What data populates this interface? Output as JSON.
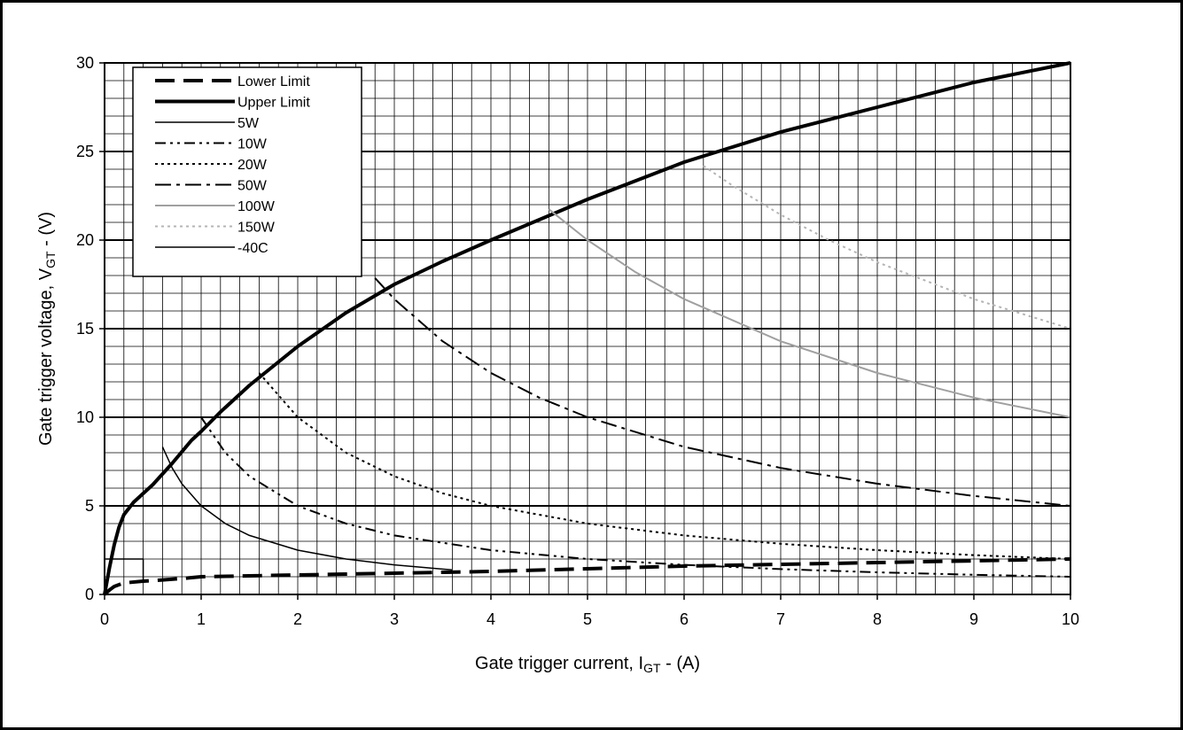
{
  "chart_data": {
    "type": "line",
    "xlabel": {
      "main": "Gate trigger current,  I",
      "sub": "GT",
      "suffix": " - (A)"
    },
    "ylabel": {
      "main": "Gate trigger voltage, V",
      "sub": "GT",
      "suffix": " - (V)"
    },
    "xlim": [
      0,
      10
    ],
    "ylim": [
      0,
      30
    ],
    "xticks": [
      "0",
      "1",
      "2",
      "3",
      "4",
      "5",
      "6",
      "7",
      "8",
      "9",
      "10"
    ],
    "yticks": [
      "0",
      "5",
      "10",
      "15",
      "20",
      "25",
      "30"
    ],
    "grid": true,
    "legend_position": "top-left",
    "series": [
      {
        "name": "Lower Limit",
        "style": "long-dash",
        "color": "#000000",
        "weight": "heavy",
        "points": [
          [
            0,
            0
          ],
          [
            0.05,
            0.25
          ],
          [
            0.1,
            0.45
          ],
          [
            0.2,
            0.65
          ],
          [
            0.4,
            0.75
          ],
          [
            0.6,
            0.82
          ],
          [
            0.8,
            0.9
          ],
          [
            1,
            1.0
          ],
          [
            2,
            1.1
          ],
          [
            3,
            1.2
          ],
          [
            4,
            1.3
          ],
          [
            5,
            1.45
          ],
          [
            6,
            1.6
          ],
          [
            7,
            1.7
          ],
          [
            8,
            1.8
          ],
          [
            9,
            1.9
          ],
          [
            10,
            2.0
          ]
        ]
      },
      {
        "name": "Upper Limit",
        "style": "solid",
        "color": "#000000",
        "weight": "heavy",
        "points": [
          [
            0,
            0
          ],
          [
            0.05,
            1.5
          ],
          [
            0.1,
            2.8
          ],
          [
            0.15,
            3.8
          ],
          [
            0.2,
            4.5
          ],
          [
            0.3,
            5.2
          ],
          [
            0.5,
            6.2
          ],
          [
            0.7,
            7.4
          ],
          [
            0.9,
            8.7
          ],
          [
            1,
            9.2
          ],
          [
            1.2,
            10.3
          ],
          [
            1.5,
            11.8
          ],
          [
            2,
            14.0
          ],
          [
            2.5,
            15.9
          ],
          [
            3,
            17.5
          ],
          [
            3.5,
            18.8
          ],
          [
            4,
            20.0
          ],
          [
            5,
            22.3
          ],
          [
            6,
            24.4
          ],
          [
            7,
            26.1
          ],
          [
            8,
            27.5
          ],
          [
            9,
            28.9
          ],
          [
            10,
            30.0
          ]
        ]
      },
      {
        "name": "5W",
        "style": "solid",
        "color": "#000000",
        "weight": "thin",
        "points": [
          [
            0.6,
            8.33
          ],
          [
            0.7,
            7.14
          ],
          [
            0.8,
            6.25
          ],
          [
            1,
            5.0
          ],
          [
            1.25,
            4.0
          ],
          [
            1.5,
            3.33
          ],
          [
            2,
            2.5
          ],
          [
            2.5,
            2.0
          ],
          [
            3,
            1.67
          ],
          [
            3.5,
            1.43
          ],
          [
            3.6,
            1.39
          ]
        ]
      },
      {
        "name": "10W",
        "style": "dash-dot-dot",
        "color": "#000000",
        "weight": "medium",
        "points": [
          [
            1,
            10
          ],
          [
            1.25,
            8
          ],
          [
            1.5,
            6.67
          ],
          [
            2,
            5
          ],
          [
            2.5,
            4
          ],
          [
            3,
            3.33
          ],
          [
            4,
            2.5
          ],
          [
            5,
            2.0
          ],
          [
            6,
            1.67
          ],
          [
            7,
            1.43
          ],
          [
            8,
            1.25
          ],
          [
            9,
            1.11
          ],
          [
            10,
            1.0
          ]
        ]
      },
      {
        "name": "20W",
        "style": "dot",
        "color": "#000000",
        "weight": "medium",
        "points": [
          [
            1.6,
            12.5
          ],
          [
            2,
            10
          ],
          [
            2.5,
            8
          ],
          [
            3,
            6.67
          ],
          [
            3.5,
            5.71
          ],
          [
            4,
            5.0
          ],
          [
            5,
            4.0
          ],
          [
            6,
            3.33
          ],
          [
            7,
            2.86
          ],
          [
            8,
            2.5
          ],
          [
            9,
            2.22
          ],
          [
            10,
            2.0
          ]
        ]
      },
      {
        "name": "50W",
        "style": "dash-dot",
        "color": "#000000",
        "weight": "medium",
        "points": [
          [
            2.8,
            17.86
          ],
          [
            3,
            16.67
          ],
          [
            3.5,
            14.29
          ],
          [
            4,
            12.5
          ],
          [
            4.5,
            11.11
          ],
          [
            5,
            10.0
          ],
          [
            6,
            8.33
          ],
          [
            7,
            7.14
          ],
          [
            8,
            6.25
          ],
          [
            9,
            5.56
          ],
          [
            10,
            5.0
          ]
        ]
      },
      {
        "name": "100W",
        "style": "solid",
        "color": "#a0a0a0",
        "weight": "medium",
        "points": [
          [
            4.6,
            21.74
          ],
          [
            5,
            20.0
          ],
          [
            5.5,
            18.18
          ],
          [
            6,
            16.67
          ],
          [
            7,
            14.29
          ],
          [
            8,
            12.5
          ],
          [
            9,
            11.11
          ],
          [
            10,
            10.0
          ]
        ]
      },
      {
        "name": "150W",
        "style": "dot",
        "color": "#b4b4b4",
        "weight": "medium",
        "points": [
          [
            6.2,
            24.19
          ],
          [
            6.5,
            23.08
          ],
          [
            7,
            21.43
          ],
          [
            7.5,
            20.0
          ],
          [
            8,
            18.75
          ],
          [
            9,
            16.67
          ],
          [
            10,
            15.0
          ]
        ]
      },
      {
        "name": "-40C",
        "style": "solid",
        "color": "#000000",
        "weight": "thin",
        "points": [
          [
            0.4,
            2.0
          ],
          [
            0.4,
            0.7
          ],
          [
            0.4,
            2.0
          ],
          [
            0,
            2.0
          ]
        ]
      }
    ]
  }
}
